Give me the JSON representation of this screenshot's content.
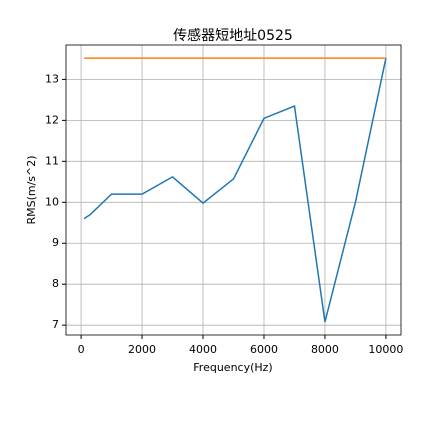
{
  "chart_data": {
    "type": "line",
    "title": "传感器短地址0525",
    "xlabel": "Frequency(Hz)",
    "ylabel": "RMS(m/s^2)",
    "series": [
      {
        "color": "#1f77b4",
        "x": [
          100,
          300,
          1000,
          2000,
          3000,
          4000,
          5000,
          6000,
          7000,
          8000,
          9000,
          10000
        ],
        "values": [
          9.6,
          9.7,
          10.2,
          10.2,
          10.62,
          9.98,
          10.57,
          12.05,
          12.35,
          7.08,
          10.0,
          13.52
        ]
      },
      {
        "color": "#ff7f0e",
        "x": [
          100,
          10000
        ],
        "values": [
          13.52,
          13.52
        ]
      }
    ],
    "xlim": [
      -495,
      10495
    ],
    "xticks": [
      0,
      2000,
      4000,
      6000,
      8000,
      10000
    ],
    "ylim": [
      6.76,
      13.84
    ],
    "yticks": [
      7,
      8,
      9,
      10,
      11,
      12,
      13
    ],
    "grid": true
  }
}
